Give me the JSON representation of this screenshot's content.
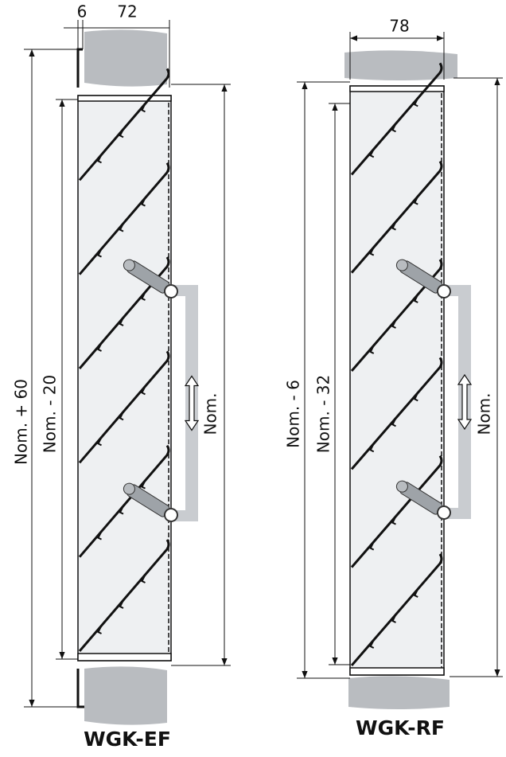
{
  "left": {
    "width_offset": "6",
    "width": "72",
    "total_height": "Nom. + 60",
    "inner_height": "Nom. - 20",
    "nominal": "Nom.",
    "label": "WGK-EF"
  },
  "right": {
    "width": "78",
    "total_height": "Nom. - 6",
    "inner_height": "Nom. - 32",
    "nominal": "Nom.",
    "label": "WGK-RF"
  }
}
